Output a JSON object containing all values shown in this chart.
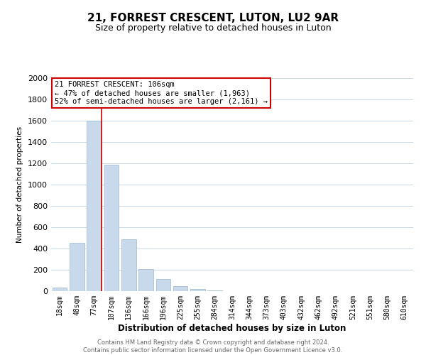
{
  "title": "21, FORREST CRESCENT, LUTON, LU2 9AR",
  "subtitle": "Size of property relative to detached houses in Luton",
  "xlabel": "Distribution of detached houses by size in Luton",
  "ylabel": "Number of detached properties",
  "bar_labels": [
    "18sqm",
    "48sqm",
    "77sqm",
    "107sqm",
    "136sqm",
    "166sqm",
    "196sqm",
    "225sqm",
    "255sqm",
    "284sqm",
    "314sqm",
    "344sqm",
    "373sqm",
    "403sqm",
    "432sqm",
    "462sqm",
    "492sqm",
    "521sqm",
    "551sqm",
    "580sqm",
    "610sqm"
  ],
  "bar_values": [
    35,
    455,
    1600,
    1190,
    485,
    210,
    115,
    45,
    20,
    5,
    0,
    0,
    0,
    0,
    0,
    0,
    0,
    0,
    0,
    0,
    0
  ],
  "bar_color": "#c8d9ec",
  "bar_edge_color": "#a8bfd6",
  "property_line_bar_index": 2,
  "property_line_color": "#cc0000",
  "annotation_title": "21 FORREST CRESCENT: 106sqm",
  "annotation_line1": "← 47% of detached houses are smaller (1,963)",
  "annotation_line2": "52% of semi-detached houses are larger (2,161) →",
  "annotation_box_color": "#ffffff",
  "annotation_box_edge_color": "#cc0000",
  "ylim": [
    0,
    2000
  ],
  "yticks": [
    0,
    200,
    400,
    600,
    800,
    1000,
    1200,
    1400,
    1600,
    1800,
    2000
  ],
  "footer_line1": "Contains HM Land Registry data © Crown copyright and database right 2024.",
  "footer_line2": "Contains public sector information licensed under the Open Government Licence v3.0.",
  "background_color": "#ffffff",
  "grid_color": "#cddbe8",
  "title_fontsize": 11,
  "subtitle_fontsize": 9
}
